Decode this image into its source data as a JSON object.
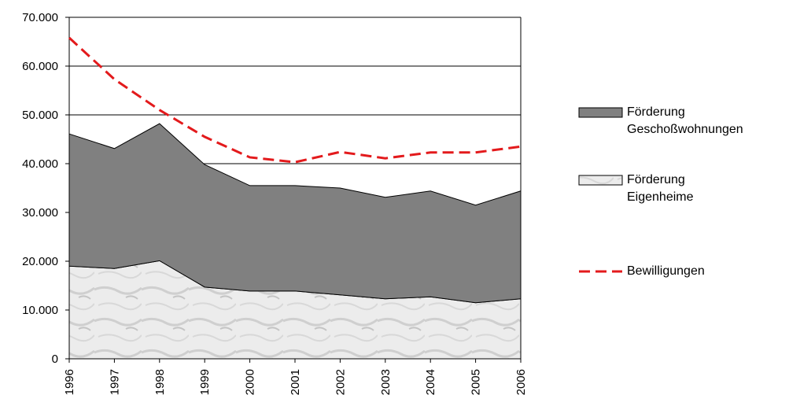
{
  "chart_data": {
    "type": "stacked-area-line",
    "categories": [
      "1996",
      "1997",
      "1998",
      "1999",
      "2000",
      "2001",
      "2002",
      "2003",
      "2004",
      "2005",
      "2006"
    ],
    "series": [
      {
        "name": "Förderung Eigenheime",
        "kind": "area",
        "color": "#e6e6e6",
        "values": [
          19000,
          18500,
          20100,
          14700,
          13900,
          13900,
          13100,
          12300,
          12700,
          11500,
          12300
        ]
      },
      {
        "name": "Förderung Geschoßwohnungen",
        "kind": "area",
        "color": "#808080",
        "values": [
          27100,
          24600,
          28100,
          25100,
          21600,
          21600,
          21900,
          20800,
          21700,
          20000,
          22100
        ]
      },
      {
        "name": "Bewilligungen",
        "kind": "line",
        "color": "#e31a1c",
        "values": [
          65800,
          57300,
          51000,
          45500,
          41300,
          40300,
          42400,
          41100,
          42300,
          42300,
          43500
        ]
      }
    ],
    "ylim": [
      0,
      70000
    ],
    "yticks": [
      0,
      {
        "value": 10000,
        "label": "10.000"
      },
      {
        "value": 20000,
        "label": "20.000"
      },
      {
        "value": 30000,
        "label": "30.000"
      },
      {
        "value": 40000,
        "label": "40.000"
      },
      {
        "value": 50000,
        "label": "50.000"
      },
      {
        "value": 60000,
        "label": "60.000"
      },
      {
        "value": 70000,
        "label": "70.000"
      }
    ],
    "grid": true
  }
}
